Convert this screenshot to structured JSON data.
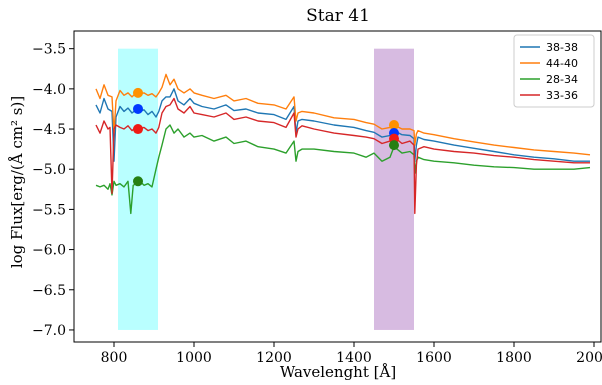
{
  "chart_data": {
    "type": "line",
    "title": "Star 41",
    "xlabel": "Wavelenght [Å]",
    "ylabel": "log Flux[erg/(Å cm² s)]",
    "xlim": [
      700,
      2020
    ],
    "ylim": [
      -7.15,
      -3.28
    ],
    "xticks": [
      800,
      1000,
      1200,
      1400,
      1600,
      1800,
      2000
    ],
    "xtick_labels": [
      "800",
      "1000",
      "1200",
      "1400",
      "1600",
      "1800",
      "2000"
    ],
    "yticks": [
      -3.5,
      -4.0,
      -4.5,
      -5.0,
      -5.5,
      -6.0,
      -6.5,
      -7.0
    ],
    "ytick_labels": [
      "−3.5",
      "−4.0",
      "−4.5",
      "−5.0",
      "−5.5",
      "−6.0",
      "−6.5",
      "−7.0"
    ],
    "grid": false,
    "legend_position": "top-right",
    "bands": [
      {
        "x_range": [
          810,
          910
        ],
        "y_range": [
          -7.0,
          -3.5
        ],
        "color": "#80ffff"
      },
      {
        "x_range": [
          1450,
          1550
        ],
        "y_range": [
          -7.0,
          -3.5
        ],
        "color": "#b784c9"
      }
    ],
    "series": [
      {
        "name": "38-38",
        "color": "#1f77b4",
        "x": [
          755,
          765,
          775,
          785,
          795,
          800,
          805,
          815,
          825,
          835,
          845,
          855,
          865,
          875,
          885,
          895,
          905,
          912,
          920,
          930,
          940,
          950,
          960,
          975,
          990,
          1000,
          1020,
          1050,
          1080,
          1100,
          1130,
          1160,
          1200,
          1230,
          1250,
          1255,
          1260,
          1270,
          1300,
          1350,
          1400,
          1430,
          1450,
          1470,
          1490,
          1500,
          1520,
          1540,
          1550,
          1552,
          1556,
          1560,
          1575,
          1600,
          1650,
          1700,
          1750,
          1800,
          1850,
          1900,
          1950,
          1990
        ],
        "values": [
          -4.2,
          -4.3,
          -4.12,
          -4.25,
          -4.28,
          -4.9,
          -4.35,
          -4.22,
          -4.28,
          -4.24,
          -4.3,
          -4.26,
          -4.28,
          -4.26,
          -4.32,
          -4.28,
          -4.35,
          -4.28,
          -4.15,
          -4.1,
          -4.1,
          -4.0,
          -4.15,
          -4.2,
          -4.12,
          -4.18,
          -4.22,
          -4.25,
          -4.2,
          -4.27,
          -4.25,
          -4.3,
          -4.32,
          -4.38,
          -4.22,
          -4.55,
          -4.4,
          -4.38,
          -4.4,
          -4.45,
          -4.48,
          -4.52,
          -4.54,
          -4.6,
          -4.58,
          -4.52,
          -4.57,
          -4.58,
          -4.62,
          -4.9,
          -4.7,
          -4.6,
          -4.63,
          -4.65,
          -4.7,
          -4.74,
          -4.78,
          -4.82,
          -4.85,
          -4.87,
          -4.9,
          -4.9
        ]
      },
      {
        "name": "44-40",
        "color": "#ff7f0e",
        "x": [
          755,
          765,
          775,
          785,
          795,
          800,
          805,
          815,
          825,
          835,
          845,
          855,
          865,
          875,
          885,
          895,
          905,
          912,
          920,
          930,
          940,
          950,
          960,
          975,
          990,
          1000,
          1020,
          1050,
          1080,
          1100,
          1130,
          1160,
          1200,
          1230,
          1250,
          1255,
          1260,
          1270,
          1300,
          1350,
          1400,
          1430,
          1450,
          1470,
          1490,
          1500,
          1520,
          1540,
          1550,
          1552,
          1556,
          1560,
          1575,
          1600,
          1650,
          1700,
          1750,
          1800,
          1850,
          1900,
          1950,
          1990
        ],
        "values": [
          -4.0,
          -4.12,
          -3.95,
          -4.08,
          -4.1,
          -4.55,
          -4.15,
          -4.02,
          -4.08,
          -4.05,
          -4.1,
          -4.05,
          -4.06,
          -4.05,
          -4.08,
          -4.06,
          -4.1,
          -4.05,
          -3.98,
          -3.82,
          -3.95,
          -3.88,
          -4.0,
          -4.05,
          -4.0,
          -4.05,
          -4.08,
          -4.12,
          -4.08,
          -4.15,
          -4.12,
          -4.18,
          -4.2,
          -4.25,
          -4.1,
          -4.4,
          -4.3,
          -4.28,
          -4.3,
          -4.36,
          -4.38,
          -4.42,
          -4.44,
          -4.5,
          -4.48,
          -4.45,
          -4.5,
          -4.5,
          -4.52,
          -4.7,
          -4.56,
          -4.52,
          -4.55,
          -4.57,
          -4.62,
          -4.66,
          -4.7,
          -4.73,
          -4.76,
          -4.78,
          -4.8,
          -4.82
        ]
      },
      {
        "name": "28-34",
        "color": "#2ca02c",
        "x": [
          755,
          765,
          775,
          785,
          790,
          795,
          800,
          805,
          815,
          825,
          835,
          842,
          848,
          855,
          865,
          875,
          885,
          895,
          905,
          912,
          920,
          930,
          940,
          950,
          960,
          975,
          990,
          1000,
          1020,
          1050,
          1080,
          1100,
          1130,
          1160,
          1200,
          1230,
          1250,
          1255,
          1260,
          1270,
          1300,
          1350,
          1400,
          1430,
          1450,
          1470,
          1490,
          1500,
          1520,
          1540,
          1550,
          1552,
          1556,
          1560,
          1575,
          1600,
          1650,
          1700,
          1750,
          1800,
          1850,
          1900,
          1950,
          1990
        ],
        "values": [
          -5.2,
          -5.22,
          -5.2,
          -5.25,
          -5.18,
          -5.32,
          -5.15,
          -5.2,
          -5.18,
          -5.22,
          -5.15,
          -5.55,
          -5.2,
          -5.18,
          -5.15,
          -5.2,
          -5.18,
          -5.22,
          -5.0,
          -4.85,
          -4.7,
          -4.5,
          -4.45,
          -4.55,
          -4.5,
          -4.6,
          -4.55,
          -4.6,
          -4.58,
          -4.65,
          -4.6,
          -4.68,
          -4.65,
          -4.72,
          -4.75,
          -4.8,
          -4.65,
          -4.9,
          -4.78,
          -4.75,
          -4.75,
          -4.78,
          -4.8,
          -4.85,
          -4.8,
          -4.9,
          -4.85,
          -4.72,
          -4.8,
          -4.78,
          -4.82,
          -5.05,
          -4.9,
          -4.85,
          -4.88,
          -4.9,
          -4.92,
          -4.95,
          -4.97,
          -4.98,
          -5.0,
          -5.0,
          -5.0,
          -4.98
        ]
      },
      {
        "name": "33-36",
        "color": "#d62728",
        "x": [
          755,
          765,
          775,
          785,
          790,
          795,
          800,
          805,
          815,
          825,
          835,
          845,
          855,
          865,
          875,
          885,
          895,
          905,
          912,
          920,
          930,
          940,
          950,
          960,
          975,
          990,
          1000,
          1020,
          1050,
          1080,
          1100,
          1130,
          1160,
          1200,
          1230,
          1250,
          1255,
          1260,
          1270,
          1300,
          1350,
          1400,
          1430,
          1450,
          1470,
          1490,
          1500,
          1520,
          1540,
          1550,
          1552,
          1556,
          1560,
          1575,
          1600,
          1650,
          1700,
          1750,
          1800,
          1850,
          1900,
          1950,
          1990
        ],
        "values": [
          -4.45,
          -4.55,
          -4.4,
          -4.5,
          -4.48,
          -5.3,
          -4.5,
          -4.45,
          -4.48,
          -4.5,
          -4.46,
          -4.52,
          -4.48,
          -4.5,
          -4.48,
          -4.52,
          -4.5,
          -4.55,
          -4.48,
          -4.3,
          -4.22,
          -4.2,
          -4.12,
          -4.25,
          -4.3,
          -4.22,
          -4.3,
          -4.32,
          -4.35,
          -4.3,
          -4.38,
          -4.35,
          -4.4,
          -4.42,
          -4.48,
          -4.3,
          -4.6,
          -4.5,
          -4.46,
          -4.5,
          -4.55,
          -4.58,
          -4.6,
          -4.62,
          -4.68,
          -4.65,
          -4.6,
          -4.68,
          -4.65,
          -4.7,
          -5.55,
          -4.95,
          -4.75,
          -4.72,
          -4.75,
          -4.78,
          -4.8,
          -4.83,
          -4.85,
          -4.88,
          -4.9,
          -4.92,
          -4.92
        ]
      }
    ],
    "markers": [
      {
        "series": "44-40",
        "x": 860,
        "y": -4.05
      },
      {
        "series": "38-38",
        "x": 860,
        "y": -4.25
      },
      {
        "series": "33-36",
        "x": 860,
        "y": -4.5
      },
      {
        "series": "28-34",
        "x": 860,
        "y": -5.15
      },
      {
        "series": "44-40",
        "x": 1500,
        "y": -4.45
      },
      {
        "series": "38-38",
        "x": 1500,
        "y": -4.55
      },
      {
        "series": "33-36",
        "x": 1500,
        "y": -4.62
      },
      {
        "series": "28-34",
        "x": 1500,
        "y": -4.7
      }
    ],
    "marker_colors": {
      "44-40": "#ff9100",
      "38-38": "#0039ff",
      "33-36": "#ef1b14",
      "28-34": "#257f12"
    }
  }
}
